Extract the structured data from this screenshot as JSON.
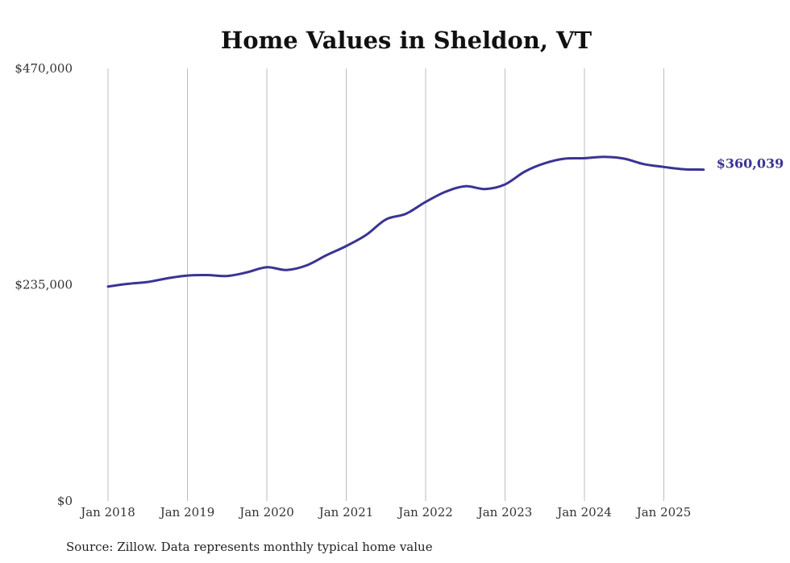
{
  "chart_data": {
    "type": "line",
    "title": "Home Values in Sheldon, VT",
    "source": "Source: Zillow. Data represents monthly typical home value",
    "ylim": [
      0,
      470000
    ],
    "y_ticks": [
      {
        "value": 0,
        "label": "$0"
      },
      {
        "value": 235000,
        "label": "$235,000"
      },
      {
        "value": 470000,
        "label": "$470,000"
      }
    ],
    "x_ticks": [
      {
        "value": "2018-01",
        "label": "Jan 2018"
      },
      {
        "value": "2019-01",
        "label": "Jan 2019"
      },
      {
        "value": "2020-01",
        "label": "Jan 2020"
      },
      {
        "value": "2021-01",
        "label": "Jan 2021"
      },
      {
        "value": "2022-01",
        "label": "Jan 2022"
      },
      {
        "value": "2023-01",
        "label": "Jan 2023"
      },
      {
        "value": "2024-01",
        "label": "Jan 2024"
      },
      {
        "value": "2025-01",
        "label": "Jan 2025"
      }
    ],
    "grid": "vertical",
    "line_color": "#3a3493",
    "end_label": "$360,039",
    "series": [
      {
        "dates": [
          "2018-01",
          "2018-04",
          "2018-07",
          "2018-10",
          "2019-01",
          "2019-04",
          "2019-07",
          "2019-10",
          "2020-01",
          "2020-04",
          "2020-07",
          "2020-10",
          "2021-01",
          "2021-04",
          "2021-07",
          "2021-10",
          "2022-01",
          "2022-04",
          "2022-07",
          "2022-10",
          "2023-01",
          "2023-04",
          "2023-07",
          "2023-10",
          "2024-01",
          "2024-04",
          "2024-07",
          "2024-10",
          "2025-01",
          "2025-04",
          "2025-07"
        ],
        "values": [
          233000,
          236000,
          238000,
          242000,
          245000,
          245500,
          244500,
          248500,
          254000,
          251000,
          256000,
          267000,
          277000,
          289000,
          306000,
          312000,
          325000,
          336000,
          342000,
          339000,
          344000,
          358000,
          367000,
          372000,
          372500,
          374000,
          372000,
          366000,
          363000,
          360500,
          360039
        ]
      }
    ]
  }
}
